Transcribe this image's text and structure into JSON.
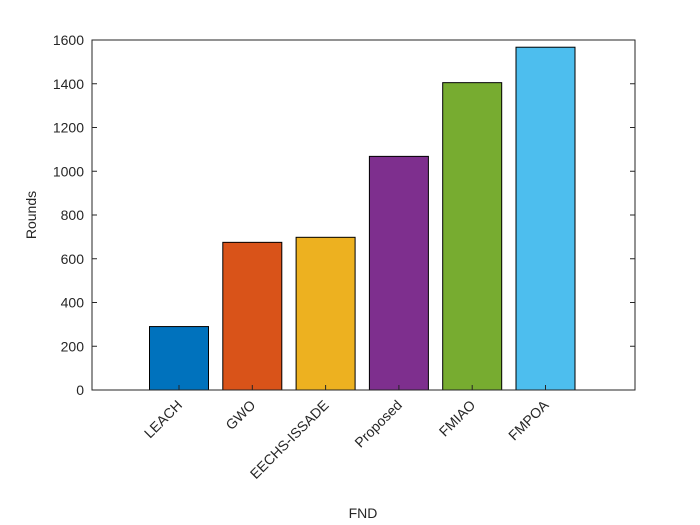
{
  "chart_data": {
    "type": "bar",
    "xlabel": "FND",
    "ylabel": "Rounds",
    "categories": [
      "LEACH",
      "GWO",
      "EECHS-ISSADE",
      "Proposed",
      "FMIAO",
      "FMPOA"
    ],
    "values": [
      290,
      675,
      698,
      1068,
      1405,
      1567
    ],
    "colors": [
      "#0072bd",
      "#d95319",
      "#edb120",
      "#7e2f8e",
      "#77ac30",
      "#4dbeee"
    ],
    "ylim": [
      0,
      1600
    ],
    "yticks": [
      0,
      200,
      400,
      600,
      800,
      1000,
      1200,
      1400,
      1600
    ]
  }
}
